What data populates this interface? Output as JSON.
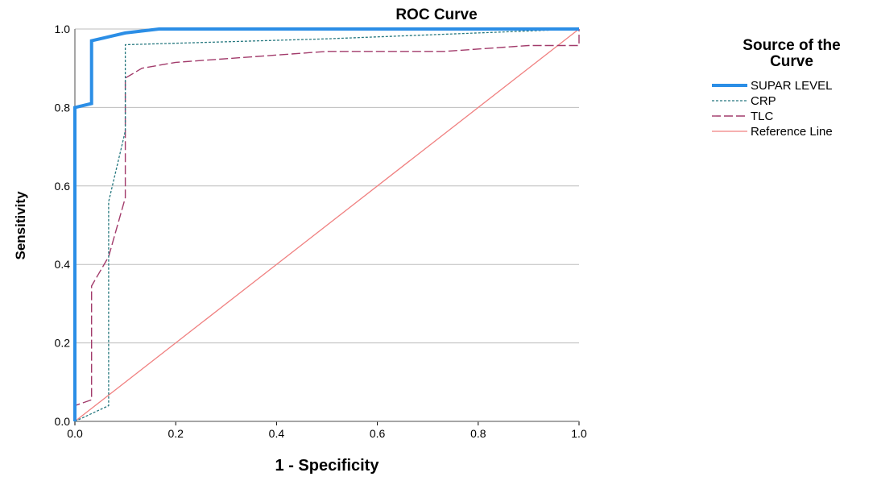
{
  "chart_data": {
    "type": "line",
    "title": "ROC Curve",
    "xlabel": "1 - Specificity",
    "ylabel": "Sensitivity",
    "xlim": [
      0,
      1
    ],
    "ylim": [
      0,
      1
    ],
    "xticks": [
      "0.0",
      "0.2",
      "0.4",
      "0.6",
      "0.8",
      "1.0"
    ],
    "yticks": [
      "0.0",
      "0.2",
      "0.4",
      "0.6",
      "0.8",
      "1.0"
    ],
    "grid": "horizontal",
    "legend": {
      "title_lines": [
        "Source of the",
        "Curve"
      ],
      "position": "right"
    },
    "series": [
      {
        "name": "SUPAR LEVEL",
        "color": "#2b8ee6",
        "style": "solid-thick",
        "x": [
          0.0,
          0.0,
          0.033,
          0.033,
          0.067,
          0.1,
          0.167,
          1.0
        ],
        "y": [
          0.0,
          0.8,
          0.81,
          0.97,
          0.98,
          0.99,
          1.0,
          1.0
        ]
      },
      {
        "name": "CRP",
        "color": "#26787f",
        "style": "dotted",
        "x": [
          0.0,
          0.067,
          0.067,
          0.067,
          0.1,
          0.1,
          0.5,
          1.0,
          1.0
        ],
        "y": [
          0.0,
          0.04,
          0.42,
          0.56,
          0.74,
          0.96,
          0.975,
          1.0,
          1.0
        ]
      },
      {
        "name": "TLC",
        "color": "#a23b6b",
        "style": "dashed",
        "x": [
          0.0,
          0.0,
          0.033,
          0.033,
          0.067,
          0.1,
          0.1,
          0.133,
          0.2,
          0.5,
          0.733,
          0.9,
          1.0,
          1.0
        ],
        "y": [
          0.0,
          0.04,
          0.055,
          0.345,
          0.42,
          0.57,
          0.875,
          0.9,
          0.915,
          0.943,
          0.943,
          0.958,
          0.958,
          1.0
        ]
      },
      {
        "name": "Reference Line",
        "color": "#f08080",
        "style": "thin",
        "x": [
          0.0,
          1.0
        ],
        "y": [
          0.0,
          1.0
        ]
      }
    ]
  }
}
